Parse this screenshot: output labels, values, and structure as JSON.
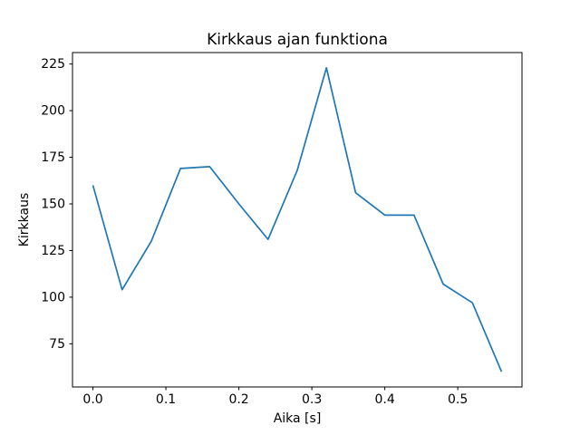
{
  "chart_data": {
    "type": "line",
    "title": "Kirkkaus ajan funktiona",
    "xlabel": "Aika [s]",
    "ylabel": "Kirkkaus",
    "x": [
      0.0,
      0.04,
      0.08,
      0.12,
      0.16,
      0.2,
      0.24,
      0.28,
      0.32,
      0.36,
      0.4,
      0.44,
      0.48,
      0.52,
      0.56
    ],
    "y": [
      160,
      104,
      130,
      169,
      170,
      150,
      131,
      168,
      223,
      156,
      144,
      144,
      107,
      97,
      60
    ],
    "xlim": [
      -0.028,
      0.588
    ],
    "ylim": [
      51.85,
      231.15
    ],
    "xticks": [
      0.0,
      0.1,
      0.2,
      0.3,
      0.4,
      0.5
    ],
    "xtick_labels": [
      "0.0",
      "0.1",
      "0.2",
      "0.3",
      "0.4",
      "0.5"
    ],
    "yticks": [
      75,
      100,
      125,
      150,
      175,
      200,
      225
    ],
    "ytick_labels": [
      "75",
      "100",
      "125",
      "150",
      "175",
      "200",
      "225"
    ],
    "line_color": "#1f77b4",
    "grid": false,
    "legend": null
  }
}
